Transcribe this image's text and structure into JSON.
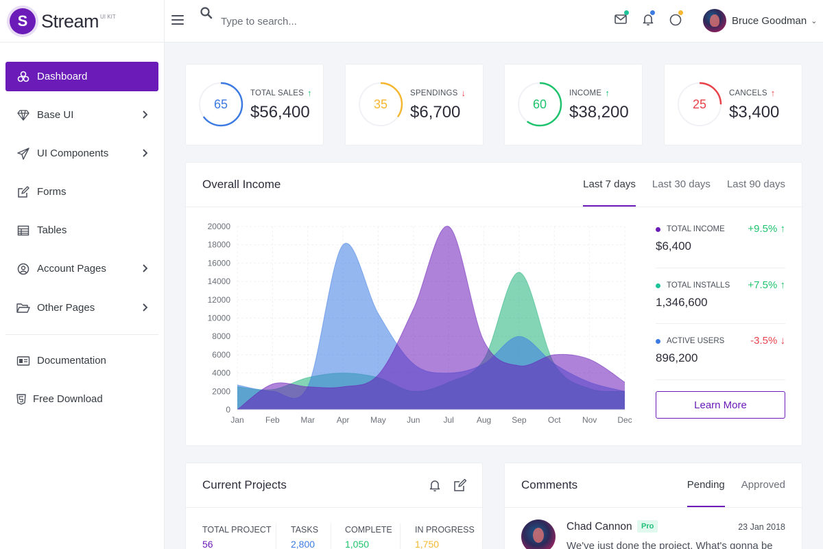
{
  "brand": {
    "letter": "S",
    "name": "Stream",
    "tag": "UI KIT"
  },
  "search": {
    "placeholder": "Type to search..."
  },
  "user": {
    "name": "Bruce Goodman"
  },
  "colors": {
    "accent": "#6a1bb8",
    "blue": "#3d7be3",
    "yellow": "#f5b731",
    "green": "#1fc36e",
    "red": "#e8434b"
  },
  "sidebar": {
    "items": [
      {
        "label": "Dashboard",
        "icon": "cubes-icon",
        "active": true
      },
      {
        "label": "Base UI",
        "icon": "diamond-icon",
        "has_children": true
      },
      {
        "label": "UI Components",
        "icon": "paper-plane-icon",
        "has_children": true
      },
      {
        "label": "Forms",
        "icon": "edit-icon"
      },
      {
        "label": "Tables",
        "icon": "table-icon"
      },
      {
        "label": "Account Pages",
        "icon": "user-circle-icon",
        "has_children": true
      },
      {
        "label": "Other Pages",
        "icon": "folder-open-icon",
        "has_children": true
      }
    ],
    "footer_items": [
      {
        "label": "Documentation",
        "icon": "id-card-icon"
      },
      {
        "label": "Free Download",
        "icon": "html5-icon"
      }
    ]
  },
  "stats": [
    {
      "label": "TOTAL SALES",
      "value": "$56,400",
      "percent": 65,
      "trend": "up",
      "color": "#3d7be3"
    },
    {
      "label": "SPENDINGS",
      "value": "$6,700",
      "percent": 35,
      "trend": "down",
      "color": "#f5b731"
    },
    {
      "label": "INCOME",
      "value": "$38,200",
      "percent": 60,
      "trend": "up",
      "color": "#1fc36e"
    },
    {
      "label": "CANCELS",
      "value": "$3,400",
      "percent": 25,
      "trend": "up",
      "color": "#e8434b"
    }
  ],
  "income": {
    "title": "Overall Income",
    "tabs": [
      "Last 7 days",
      "Last 30 days",
      "Last 90 days"
    ],
    "active_tab": 0,
    "metrics": [
      {
        "label": "TOTAL INCOME",
        "value": "$6,400",
        "change": "+9.5%",
        "trend": "up",
        "dot": "#6a1bb8"
      },
      {
        "label": "TOTAL INSTALLS",
        "value": "1,346,600",
        "change": "+7.5%",
        "trend": "up",
        "dot": "#1fc39a"
      },
      {
        "label": "ACTIVE USERS",
        "value": "896,200",
        "change": "-3.5%",
        "trend": "down",
        "dot": "#3d7be3"
      }
    ],
    "button": "Learn More"
  },
  "chart_data": {
    "type": "area",
    "categories": [
      "Jan",
      "Feb",
      "Mar",
      "Apr",
      "May",
      "Jun",
      "Jul",
      "Aug",
      "Sep",
      "Oct",
      "Nov",
      "Dec"
    ],
    "ylim": [
      0,
      20000
    ],
    "yticks": [
      0,
      2000,
      4000,
      6000,
      8000,
      10000,
      12000,
      14000,
      16000,
      18000,
      20000
    ],
    "grid": true,
    "series": [
      {
        "color": "#1fb27a",
        "values": [
          2500,
          2200,
          3500,
          4000,
          3500,
          2000,
          3000,
          5500,
          15000,
          5000,
          2300,
          2000
        ]
      },
      {
        "color": "#3d7be3",
        "values": [
          2700,
          2000,
          2500,
          18000,
          10500,
          5000,
          4000,
          5000,
          8000,
          5000,
          3000,
          2000
        ]
      },
      {
        "color": "#6a1bb8",
        "values": [
          0,
          2800,
          2500,
          2500,
          3800,
          11000,
          20000,
          7500,
          4800,
          6000,
          5500,
          3000
        ]
      }
    ]
  },
  "projects": {
    "title": "Current Projects",
    "stats": [
      {
        "label": "TOTAL PROJECT",
        "value": "56",
        "color": "#6a1bb8"
      },
      {
        "label": "TASKS",
        "value": "2,800",
        "color": "#3d7be3"
      },
      {
        "label": "COMPLETE",
        "value": "1,050",
        "color": "#1fc36e"
      },
      {
        "label": "IN PROGRESS",
        "value": "1,750",
        "color": "#f5b731"
      }
    ]
  },
  "comments": {
    "title": "Comments",
    "tabs": [
      "Pending",
      "Approved"
    ],
    "items": [
      {
        "name": "Chad Cannon",
        "badge": "Pro",
        "date": "23 Jan 2018",
        "text": "We've just done the project. What's gonna be"
      }
    ]
  }
}
